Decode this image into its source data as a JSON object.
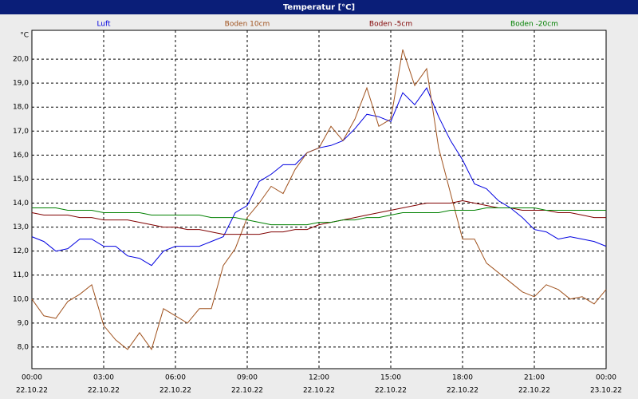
{
  "chart_data": {
    "type": "line",
    "title": "Temperatur [°C]",
    "y_unit": "°C",
    "x": [
      0,
      0.5,
      1,
      1.5,
      2,
      2.5,
      3,
      3.5,
      4,
      4.5,
      5,
      5.5,
      6,
      6.5,
      7,
      7.5,
      8,
      8.5,
      9,
      9.5,
      10,
      10.5,
      11,
      11.5,
      12,
      12.5,
      13,
      13.5,
      14,
      14.5,
      15,
      15.5,
      16,
      16.5,
      17,
      17.5,
      18,
      18.5,
      19,
      19.5,
      20,
      20.5,
      21,
      21.5,
      22,
      22.5,
      23,
      23.5,
      24
    ],
    "series": [
      {
        "name": "Luft",
        "color": "#0000e0",
        "values": [
          12.6,
          12.4,
          12.0,
          12.1,
          12.5,
          12.5,
          12.2,
          12.2,
          11.8,
          11.7,
          11.4,
          12.0,
          12.2,
          12.2,
          12.2,
          12.4,
          12.6,
          13.6,
          13.9,
          14.9,
          15.2,
          15.6,
          15.6,
          16.1,
          16.3,
          16.4,
          16.6,
          17.1,
          17.7,
          17.6,
          17.4,
          18.6,
          18.1,
          18.8,
          17.6,
          16.6,
          15.8,
          14.8,
          14.6,
          14.1,
          13.8,
          13.4,
          12.9,
          12.8,
          12.5,
          12.6,
          12.5,
          12.4,
          12.2
        ]
      },
      {
        "name": "Boden 10cm",
        "color": "#a0521e",
        "values": [
          10.0,
          9.3,
          9.2,
          9.9,
          10.2,
          10.6,
          8.9,
          8.3,
          7.9,
          8.6,
          7.9,
          9.6,
          9.3,
          9.0,
          9.6,
          9.6,
          11.4,
          12.1,
          13.4,
          14.0,
          14.7,
          14.4,
          15.4,
          16.1,
          16.3,
          17.2,
          16.6,
          17.5,
          18.8,
          17.2,
          17.5,
          20.4,
          18.9,
          19.6,
          16.3,
          14.4,
          12.5,
          12.5,
          11.5,
          11.1,
          10.7,
          10.3,
          10.1,
          10.6,
          10.4,
          10.0,
          10.1,
          9.8,
          10.4
        ]
      },
      {
        "name": "Boden -5cm",
        "color": "#800000",
        "values": [
          13.6,
          13.5,
          13.5,
          13.5,
          13.4,
          13.4,
          13.3,
          13.3,
          13.3,
          13.2,
          13.1,
          13.0,
          13.0,
          12.9,
          12.9,
          12.8,
          12.7,
          12.7,
          12.7,
          12.7,
          12.8,
          12.8,
          12.9,
          12.9,
          13.1,
          13.2,
          13.3,
          13.4,
          13.5,
          13.6,
          13.7,
          13.8,
          13.9,
          14.0,
          14.0,
          14.0,
          14.1,
          14.0,
          13.9,
          13.8,
          13.8,
          13.7,
          13.7,
          13.7,
          13.6,
          13.6,
          13.5,
          13.4,
          13.4
        ]
      },
      {
        "name": "Boden -20cm",
        "color": "#008000",
        "values": [
          13.8,
          13.8,
          13.8,
          13.7,
          13.7,
          13.7,
          13.6,
          13.6,
          13.6,
          13.6,
          13.5,
          13.5,
          13.5,
          13.5,
          13.5,
          13.4,
          13.4,
          13.4,
          13.3,
          13.2,
          13.1,
          13.1,
          13.1,
          13.1,
          13.2,
          13.2,
          13.3,
          13.3,
          13.4,
          13.4,
          13.5,
          13.6,
          13.6,
          13.6,
          13.6,
          13.7,
          13.7,
          13.7,
          13.8,
          13.8,
          13.8,
          13.8,
          13.8,
          13.7,
          13.7,
          13.7,
          13.7,
          13.7,
          13.7
        ]
      }
    ],
    "xlim": [
      0,
      24
    ],
    "xticks": [
      {
        "value": 0,
        "label": "00:00"
      },
      {
        "value": 3,
        "label": "03:00"
      },
      {
        "value": 6,
        "label": "06:00"
      },
      {
        "value": 9,
        "label": "09:00"
      },
      {
        "value": 12,
        "label": "12:00"
      },
      {
        "value": 15,
        "label": "15:00"
      },
      {
        "value": 18,
        "label": "18:00"
      },
      {
        "value": 21,
        "label": "21:00"
      },
      {
        "value": 24,
        "label": "00:00"
      }
    ],
    "xtick_dates": [
      "22.10.22",
      "22.10.22",
      "22.10.22",
      "22.10.22",
      "22.10.22",
      "22.10.22",
      "22.10.22",
      "22.10.22",
      "23.10.22"
    ],
    "ylim": [
      7.1,
      21.2
    ],
    "yticks": [
      {
        "value": 8,
        "label": "8,0"
      },
      {
        "value": 9,
        "label": "9,0"
      },
      {
        "value": 10,
        "label": "10,0"
      },
      {
        "value": 11,
        "label": "11,0"
      },
      {
        "value": 12,
        "label": "12,0"
      },
      {
        "value": 13,
        "label": "13,0"
      },
      {
        "value": 14,
        "label": "14,0"
      },
      {
        "value": 15,
        "label": "15,0"
      },
      {
        "value": 16,
        "label": "16,0"
      },
      {
        "value": 17,
        "label": "17,0"
      },
      {
        "value": 18,
        "label": "18,0"
      },
      {
        "value": 19,
        "label": "19,0"
      },
      {
        "value": 20,
        "label": "20,0"
      }
    ],
    "grid": true
  }
}
